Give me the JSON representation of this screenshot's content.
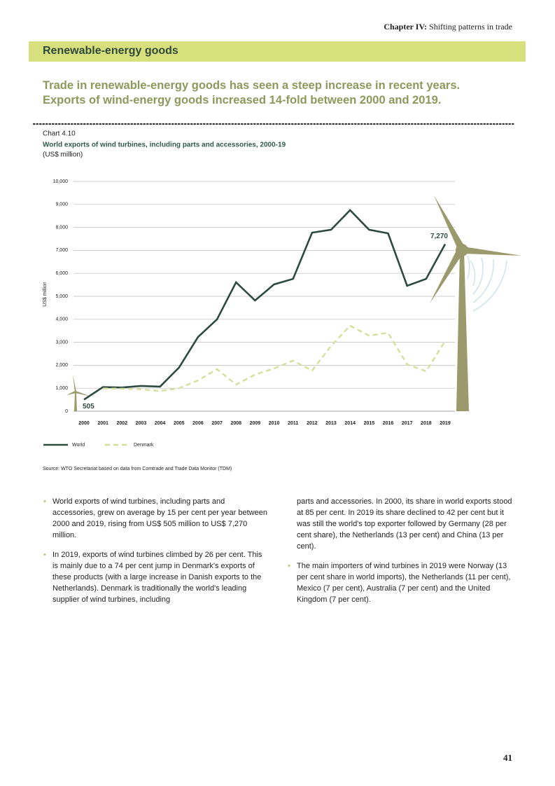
{
  "header": {
    "chapter": "Chapter IV:",
    "title": "Shifting patterns in trade"
  },
  "section_title": "Renewable-energy goods",
  "headline": [
    "Trade in renewable-energy goods has seen a steep increase in recent years.",
    "Exports of wind-energy goods increased 14-fold between 2000 and 2019."
  ],
  "chart_data": {
    "type": "line",
    "label": "Chart 4.10",
    "title": "World exports of wind turbines, including parts and accessories, 2000-19",
    "subtitle": "(US$ million)",
    "y_label": "US$ million",
    "categories": [
      "2000",
      "2001",
      "2002",
      "2003",
      "2004",
      "2005",
      "2006",
      "2007",
      "2008",
      "2009",
      "2010",
      "2011",
      "2012",
      "2013",
      "2014",
      "2015",
      "2016",
      "2017",
      "2018",
      "2019"
    ],
    "series": [
      {
        "name": "World",
        "color": "#2d4a3e",
        "dash": false,
        "values": [
          505,
          1050,
          1030,
          1100,
          1070,
          1900,
          3230,
          4000,
          5610,
          4820,
          5520,
          5760,
          7770,
          7900,
          8750,
          7900,
          7740,
          5460,
          5760,
          7270
        ],
        "value_labels": [
          "505",
          null,
          null,
          null,
          null,
          null,
          null,
          null,
          null,
          null,
          null,
          null,
          null,
          null,
          null,
          null,
          null,
          null,
          null,
          "7,270"
        ]
      },
      {
        "name": "Denmark",
        "color": "#d4df9c",
        "dash": true,
        "values": [
          null,
          990,
          980,
          950,
          880,
          1000,
          1340,
          1830,
          1160,
          1590,
          1860,
          2200,
          1770,
          2840,
          3720,
          3290,
          3410,
          2040,
          1740,
          3050
        ]
      }
    ],
    "ylim": [
      0,
      10000
    ],
    "yticks": [
      0,
      {
        "value": 1000,
        "label": "1,000"
      },
      {
        "value": 2000,
        "label": "2,000"
      },
      {
        "value": 3000,
        "label": "3,000"
      },
      {
        "value": 4000,
        "label": "4,000"
      },
      {
        "value": 5000,
        "label": "5,000"
      },
      {
        "value": 6000,
        "label": "6,000"
      },
      {
        "value": 7000,
        "label": "7,000"
      },
      {
        "value": 8000,
        "label": "8,000"
      },
      {
        "value": 9000,
        "label": "9,000"
      },
      {
        "value": 10000,
        "label": "10,000"
      }
    ],
    "grid": true,
    "legend": "bottom-left",
    "source": "Source: WTO Secretariat based on data from Comtrade and Trade Data Monitor (TDM)"
  },
  "body": {
    "left": [
      {
        "bullet": true,
        "text": "World exports of wind turbines, including parts and accessories, grew on average by 15 per cent per year between 2000 and 2019, rising from US$ 505 million to US$ 7,270 million."
      },
      {
        "bullet": true,
        "text": "In 2019, exports of wind turbines climbed by 26 per cent. This is mainly due to a 74 per cent jump in Denmark's exports of these products (with a large increase in Danish exports to the Netherlands). Denmark is traditionally the world's leading supplier of wind turbines, including"
      }
    ],
    "right": [
      {
        "bullet": false,
        "text": "parts and accessories. In 2000, its share in world exports stood at 85 per cent. In 2019 its share declined to 42 per cent but it was still the world's top exporter followed by Germany (28 per cent share), the Netherlands (13 per cent) and China (13 per cent)."
      },
      {
        "bullet": true,
        "text": "The main importers of wind turbines in 2019 were Norway (13 per cent share in world imports), the Netherlands (11 per cent), Mexico (7 per cent), Australia (7 per cent) and the United Kingdom (7 per cent)."
      }
    ]
  },
  "page_number": "41"
}
